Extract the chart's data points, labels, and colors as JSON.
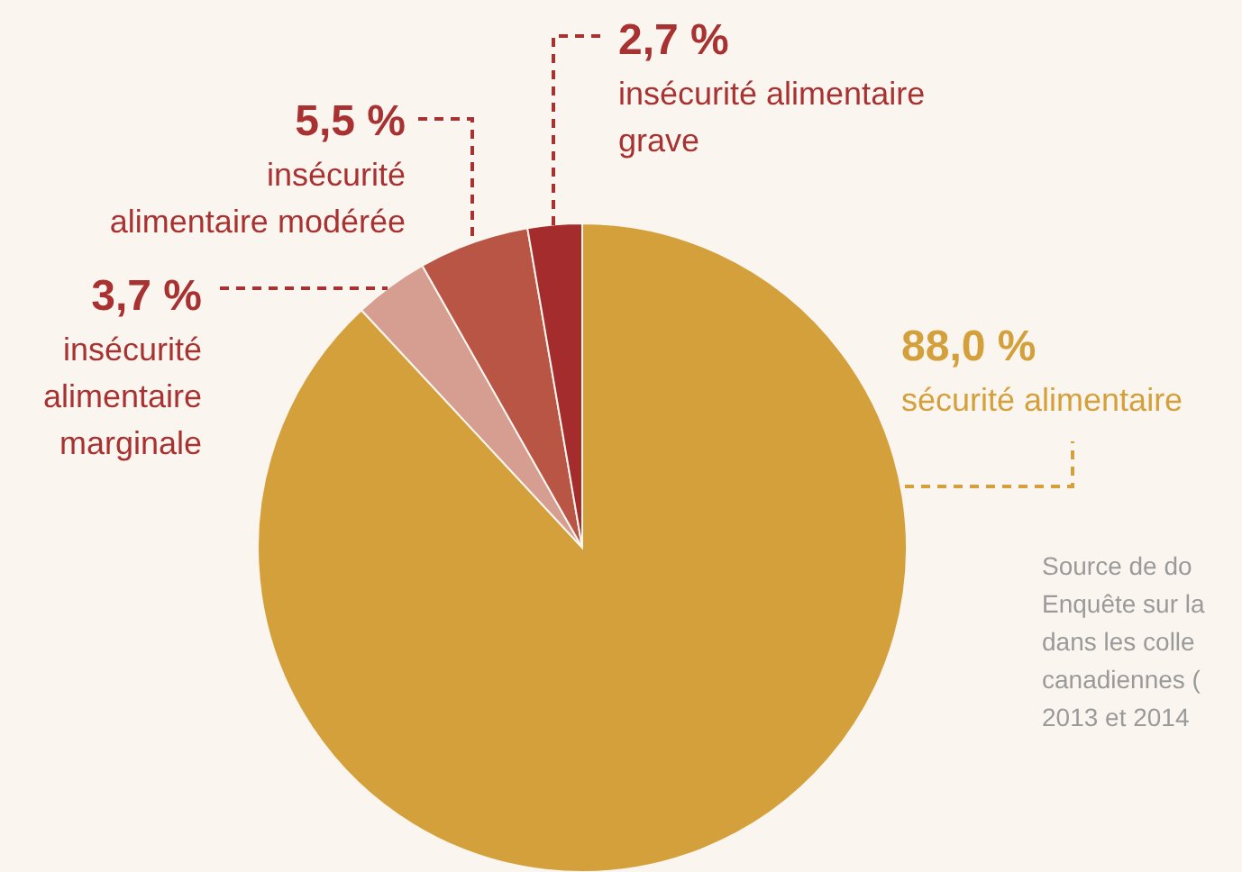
{
  "chart_data": {
    "type": "pie",
    "categories": [
      "sécurité alimentaire",
      "insécurité alimentaire marginale",
      "insécurité alimentaire modérée",
      "insécurité alimentaire grave"
    ],
    "values": [
      88.0,
      3.7,
      5.5,
      2.7
    ],
    "colors": [
      "#d4a03c",
      "#d69e90",
      "#b85545",
      "#a52c2c"
    ],
    "value_labels": [
      "88,0 %",
      "3,7 %",
      "5,5 %",
      "2,7 %"
    ],
    "legend": false,
    "annotations": [
      "Source de do\nEnquête sur la\ndans les colle\ncanadiennes (\n2013 et 2014"
    ]
  }
}
